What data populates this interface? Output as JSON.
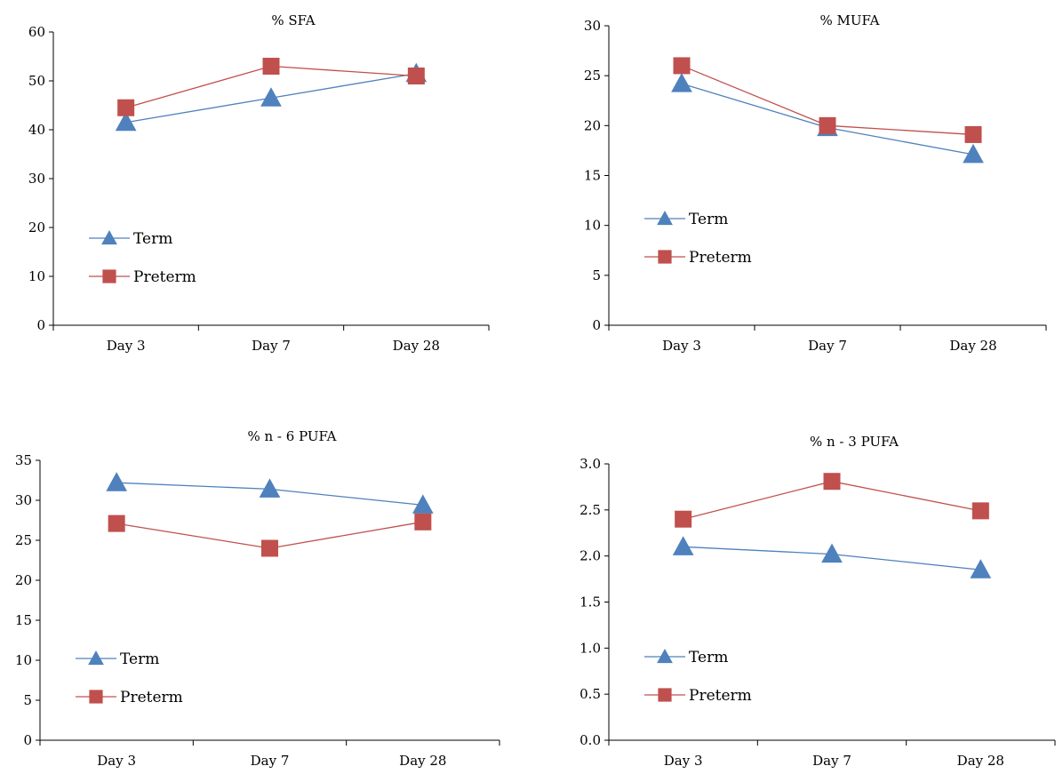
{
  "chart_data": [
    {
      "type": "line",
      "title": "% SFA",
      "categories": [
        "Day 3",
        "Day 7",
        "Day 28"
      ],
      "ylim": [
        0,
        60
      ],
      "yticks": [
        "0",
        "10",
        "20",
        "30",
        "40",
        "50",
        "60"
      ],
      "legend_position": "center-left",
      "series": [
        {
          "name": "Term",
          "values": [
            41.5,
            46.5,
            51.5
          ],
          "color": "#4f81bd",
          "marker": "triangle"
        },
        {
          "name": "Preterm",
          "values": [
            44.5,
            53,
            51
          ],
          "color": "#c0504d",
          "marker": "square"
        }
      ]
    },
    {
      "type": "line",
      "title": "% MUFA",
      "categories": [
        "Day 3",
        "Day 7",
        "Day 28"
      ],
      "ylim": [
        0,
        30
      ],
      "yticks": [
        "0",
        "5",
        "10",
        "15",
        "20",
        "25",
        "30"
      ],
      "legend_position": "center-left",
      "series": [
        {
          "name": "Term",
          "values": [
            24.2,
            19.8,
            17.1
          ],
          "color": "#4f81bd",
          "marker": "triangle"
        },
        {
          "name": "Preterm",
          "values": [
            26,
            20,
            19.1
          ],
          "color": "#c0504d",
          "marker": "square"
        }
      ]
    },
    {
      "type": "line",
      "title": "% n - 6 PUFA",
      "categories": [
        "Day 3",
        "Day 7",
        "Day 28"
      ],
      "ylim": [
        0,
        35
      ],
      "yticks": [
        "0",
        "5",
        "10",
        "15",
        "20",
        "25",
        "30",
        "35"
      ],
      "legend_position": "bottom-left",
      "series": [
        {
          "name": "Term",
          "values": [
            32.2,
            31.4,
            29.4
          ],
          "color": "#4f81bd",
          "marker": "triangle"
        },
        {
          "name": "Preterm",
          "values": [
            27.1,
            24,
            27.3
          ],
          "color": "#c0504d",
          "marker": "square"
        }
      ]
    },
    {
      "type": "line",
      "title": "% n - 3 PUFA",
      "categories": [
        "Day 3",
        "Day 7",
        "Day 28"
      ],
      "ylim": [
        0,
        3
      ],
      "yticks": [
        "0.0",
        "0.5",
        "1.0",
        "1.5",
        "2.0",
        "2.5",
        "3.0"
      ],
      "legend_position": "bottom-left",
      "series": [
        {
          "name": "Term",
          "values": [
            2.1,
            2.02,
            1.85
          ],
          "color": "#4f81bd",
          "marker": "triangle"
        },
        {
          "name": "Preterm",
          "values": [
            2.4,
            2.81,
            2.49
          ],
          "color": "#c0504d",
          "marker": "square"
        }
      ]
    }
  ]
}
